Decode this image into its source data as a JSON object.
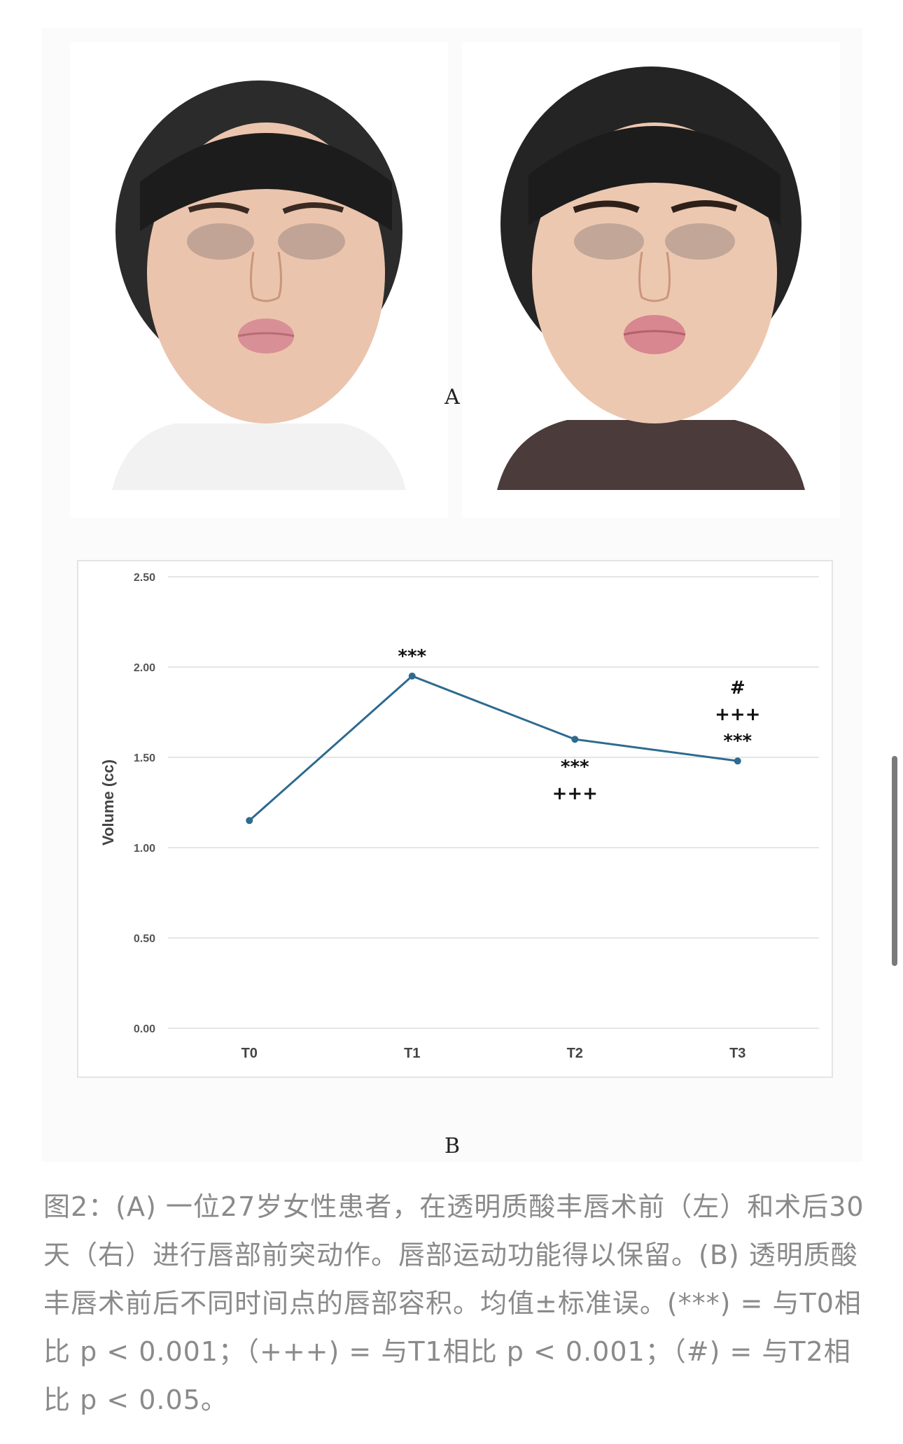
{
  "figure": {
    "panel_a_label": "A",
    "panel_b_label": "B"
  },
  "chart_data": {
    "type": "line",
    "categories": [
      "T0",
      "T1",
      "T2",
      "T3"
    ],
    "series": [
      {
        "values": [
          1.15,
          1.95,
          1.6,
          1.48
        ],
        "color": "#2e6b8f"
      }
    ],
    "ylabel": "Volume (cc)",
    "xlabel": "",
    "ylim": [
      0,
      2.5
    ],
    "yticks": [
      "0.00",
      "0.50",
      "1.00",
      "1.50",
      "2.00",
      "2.50"
    ],
    "grid": true,
    "annotations": [
      {
        "category": "T1",
        "position": "above",
        "lines": [
          "***"
        ]
      },
      {
        "category": "T2",
        "position": "below",
        "lines": [
          "***",
          "+++"
        ]
      },
      {
        "category": "T3",
        "position": "above",
        "lines": [
          "#",
          "+++",
          "***"
        ]
      }
    ]
  },
  "caption": {
    "text": "图2：(A) 一位27岁女性患者，在透明质酸丰唇术前（左）和术后30天（右）进行唇部前突动作。唇部运动功能得以保留。(B) 透明质酸丰唇术前后不同时间点的唇部容积。均值±标准误。(***) = 与T0相比 p < 0.001；（+++) = 与T1相比 p < 0.001；（#) = 与T2相比 p < 0.05。"
  }
}
